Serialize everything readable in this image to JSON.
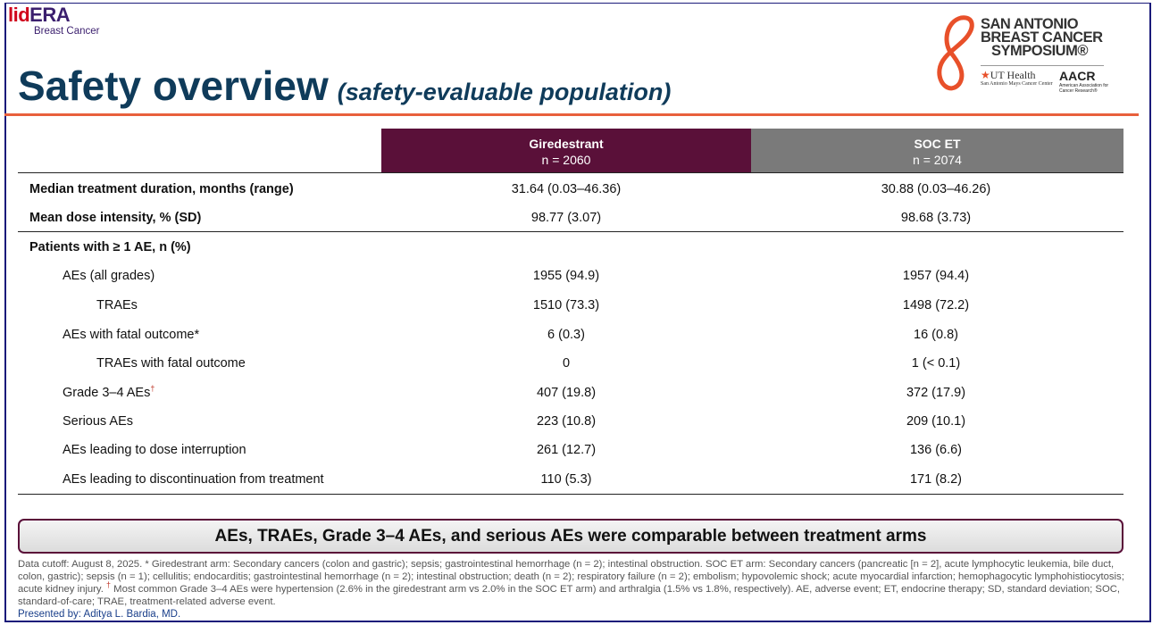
{
  "logo": {
    "part1": "lid",
    "part2": "ERA",
    "sub": "Breast Cancer"
  },
  "title": "Safety overview",
  "subtitle": "(safety-evaluable population)",
  "sponsor_logo": {
    "line1": "SAN ANTONIO",
    "line2": "BREAST CANCER",
    "line3": "SYMPOSIUM®",
    "ut": "UT Health",
    "ut_sub": "San Antonio Mays Cancer Center",
    "aacr": "AACR",
    "aacr_sub": "American Association for Cancer Research®"
  },
  "table": {
    "columns": [
      {
        "name": "Giredestrant",
        "n": "n = 2060",
        "color": "#5a1039"
      },
      {
        "name": "SOC ET",
        "n": "n = 2074",
        "color": "#7a7a7a"
      }
    ],
    "rows": [
      {
        "label": "Median treatment duration, months (range)",
        "c1": "31.64 (0.03–46.36)",
        "c2": "30.88 (0.03–46.26)"
      },
      {
        "label": "Mean dose intensity, % (SD)",
        "c1": "98.77 (3.07)",
        "c2": "98.68 (3.73)"
      },
      {
        "label": "Patients with ≥ 1 AE, n (%)",
        "c1": "",
        "c2": ""
      },
      {
        "label": "AEs (all grades)",
        "c1": "1955 (94.9)",
        "c2": "1957 (94.4)"
      },
      {
        "label": "TRAEs",
        "c1": "1510 (73.3)",
        "c2": "1498 (72.2)"
      },
      {
        "label": "AEs with fatal outcome*",
        "c1": "6 (0.3)",
        "c2": "16 (0.8)"
      },
      {
        "label": "TRAEs with fatal outcome",
        "c1": "0",
        "c2": "1 (< 0.1)"
      },
      {
        "label": "Grade 3–4 AEs",
        "sup": "†",
        "c1": "407 (19.8)",
        "c2": "372 (17.9)"
      },
      {
        "label": "Serious AEs",
        "c1": "223 (10.8)",
        "c2": "209 (10.1)"
      },
      {
        "label": "AEs leading to dose interruption",
        "c1": "261 (12.7)",
        "c2": "136 (6.6)"
      },
      {
        "label": "AEs leading to discontinuation from treatment",
        "c1": "110 (5.3)",
        "c2": "171 (8.2)"
      }
    ]
  },
  "conclusion": "AEs, TRAEs, Grade 3–4 AEs, and serious AEs were comparable between treatment arms",
  "footnote1": "Data cutoff: August 8, 2025. * Giredestrant arm: Secondary cancers (colon and gastric); sepsis; gastrointestinal hemorrhage (n = 2); intestinal obstruction. SOC ET arm: Secondary cancers (pancreatic [n = 2], acute lymphocytic leukemia, bile duct, colon, gastric); sepsis (n = 1); cellulitis; endocarditis; gastrointestinal hemorrhage (n = 2); intestinal obstruction; death (n = 2); respiratory failure (n = 2); embolism; hypovolemic shock; acute myocardial infarction; hemophagocytic lymphohistiocytosis; acute kidney injury.",
  "footnote_sup": "†",
  "footnote2": "Most common Grade 3–4 AEs were hypertension (2.6% in the giredestrant arm vs 2.0% in the SOC ET arm) and arthralgia (1.5% vs 1.8%, respectively). AE, adverse event; ET, endocrine therapy; SD, standard deviation; SOC, standard-of-care; TRAE, treatment-related adverse event.",
  "presented_by": "Presented by: Aditya L. Bardia, MD."
}
